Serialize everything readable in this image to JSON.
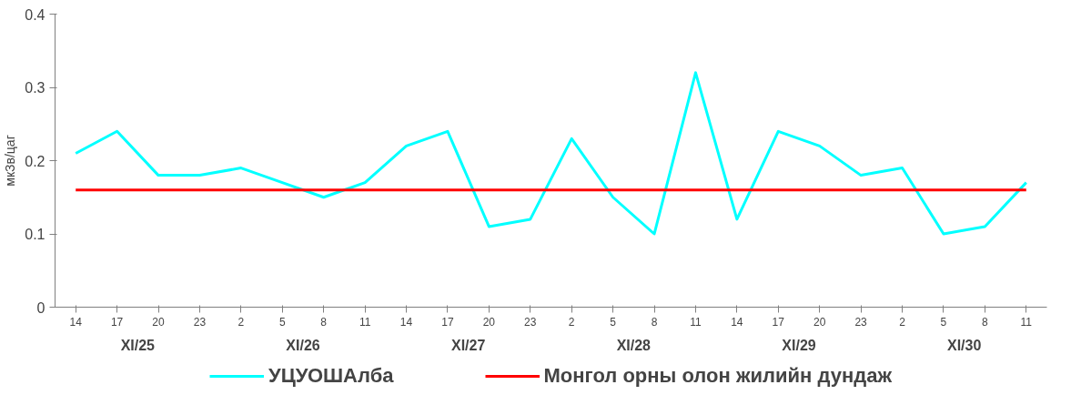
{
  "chart_data": {
    "type": "line",
    "ylabel": "мкЗв/цаг",
    "categories": [
      "14",
      "17",
      "20",
      "23",
      "2",
      "5",
      "8",
      "11",
      "14",
      "17",
      "20",
      "23",
      "2",
      "5",
      "8",
      "11",
      "14",
      "17",
      "20",
      "23",
      "2",
      "5",
      "8",
      "11"
    ],
    "series": [
      {
        "name": "УЦУОШАлба",
        "color": "#00ffff",
        "values": [
          0.21,
          0.24,
          0.18,
          0.18,
          0.19,
          0.17,
          0.15,
          0.17,
          0.22,
          0.24,
          0.11,
          0.12,
          0.23,
          0.15,
          0.1,
          0.32,
          0.12,
          0.24,
          0.22,
          0.18,
          0.19,
          0.1,
          0.11,
          0.17
        ]
      },
      {
        "name": "Монгол орны олон жилийн дундаж",
        "color": "#ff0000",
        "values": [
          0.16,
          0.16,
          0.16,
          0.16,
          0.16,
          0.16,
          0.16,
          0.16,
          0.16,
          0.16,
          0.16,
          0.16,
          0.16,
          0.16,
          0.16,
          0.16,
          0.16,
          0.16,
          0.16,
          0.16,
          0.16,
          0.16,
          0.16,
          0.16
        ]
      }
    ],
    "annotations": [
      "XI/25",
      "XI/26",
      "XI/27",
      "XI/28",
      "XI/29",
      "XI/30"
    ],
    "ylim": [
      0,
      0.4
    ],
    "yticks": [
      0,
      0.1,
      0.2,
      0.3,
      0.4
    ],
    "legend": "bottom",
    "grid": false
  }
}
